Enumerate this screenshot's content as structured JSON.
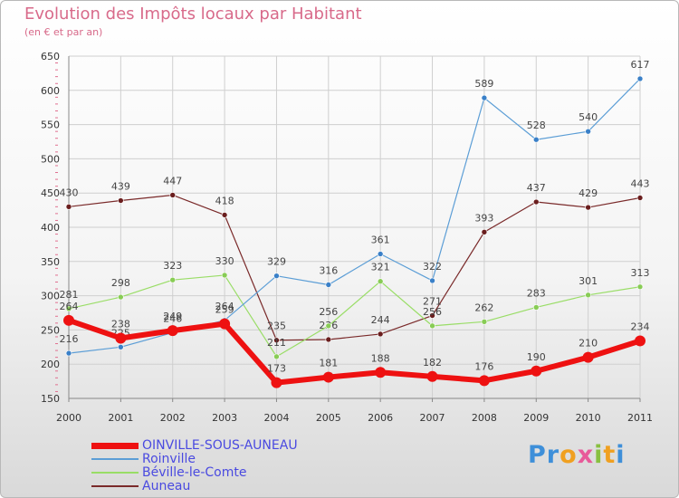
{
  "title": "Evolution des Impôts locaux par Habitant",
  "subtitle": "(en € et par an)",
  "logo_letters": [
    {
      "ch": "P",
      "color": "#3e8fd9"
    },
    {
      "ch": "r",
      "color": "#3e8fd9"
    },
    {
      "ch": "o",
      "color": "#f0a020"
    },
    {
      "ch": "x",
      "color": "#e85a9a"
    },
    {
      "ch": "i",
      "color": "#88c040"
    },
    {
      "ch": "t",
      "color": "#f0a020"
    },
    {
      "ch": "i",
      "color": "#3e8fd9"
    }
  ],
  "chart_data": {
    "type": "line",
    "x": [
      "2000",
      "2001",
      "2002",
      "2003",
      "2004",
      "2005",
      "2006",
      "2007",
      "2008",
      "2009",
      "2010",
      "2011"
    ],
    "ylim": [
      150,
      650
    ],
    "yticks": [
      150,
      200,
      250,
      300,
      350,
      400,
      450,
      500,
      550,
      600,
      650
    ],
    "grid": true,
    "legend_position": "bottom-left",
    "series": [
      {
        "name": "Auneau",
        "color": "#7a2a2a",
        "marker": "#6a1e1e",
        "width": 1.2,
        "r": 3,
        "values": [
          430,
          439,
          447,
          418,
          235,
          236,
          244,
          271,
          393,
          437,
          429,
          443
        ]
      },
      {
        "name": "Béville-le-Comte",
        "color": "#99dd66",
        "marker": "#88cc55",
        "width": 1.2,
        "r": 3,
        "values": [
          281,
          298,
          323,
          330,
          211,
          256,
          321,
          256,
          262,
          283,
          301,
          313
        ]
      },
      {
        "name": "Roinville",
        "color": "#5c9ed6",
        "marker": "#3a80c8",
        "width": 1.2,
        "r": 3,
        "values": [
          216,
          225,
          246,
          264,
          329,
          316,
          361,
          322,
          589,
          528,
          540,
          617
        ]
      },
      {
        "name": "OINVILLE-SOUS-AUNEAU",
        "color": "#ee1111",
        "marker": "#ee1111",
        "width": 6,
        "r": 6,
        "values": [
          264,
          238,
          249,
          259,
          173,
          181,
          188,
          182,
          176,
          190,
          210,
          234
        ]
      }
    ]
  },
  "legend": [
    {
      "name": "OINVILLE-SOUS-AUNEAU",
      "color": "#ee1111",
      "thick": 7
    },
    {
      "name": "Roinville",
      "color": "#5c9ed6",
      "thick": 2
    },
    {
      "name": "Béville-le-Comte",
      "color": "#99dd66",
      "thick": 2
    },
    {
      "name": "Auneau",
      "color": "#7a2a2a",
      "thick": 2
    }
  ]
}
